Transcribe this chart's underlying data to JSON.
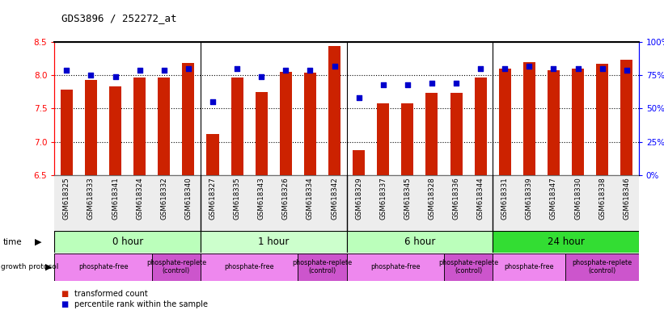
{
  "title": "GDS3896 / 252272_at",
  "samples": [
    "GSM618325",
    "GSM618333",
    "GSM618341",
    "GSM618324",
    "GSM618332",
    "GSM618340",
    "GSM618327",
    "GSM618335",
    "GSM618343",
    "GSM618326",
    "GSM618334",
    "GSM618342",
    "GSM618329",
    "GSM618337",
    "GSM618345",
    "GSM618328",
    "GSM618336",
    "GSM618344",
    "GSM618331",
    "GSM618339",
    "GSM618347",
    "GSM618330",
    "GSM618338",
    "GSM618346"
  ],
  "bar_values": [
    7.78,
    7.93,
    7.83,
    7.97,
    7.97,
    8.18,
    7.12,
    7.97,
    7.75,
    8.05,
    8.04,
    8.44,
    6.87,
    7.58,
    7.58,
    7.74,
    7.74,
    7.96,
    8.1,
    8.2,
    8.08,
    8.1,
    8.17,
    8.23
  ],
  "percentile_values": [
    79,
    75,
    74,
    79,
    79,
    80,
    55,
    80,
    74,
    79,
    79,
    82,
    58,
    68,
    68,
    69,
    69,
    80,
    80,
    82,
    80,
    80,
    80,
    79
  ],
  "ylim_left": [
    6.5,
    8.5
  ],
  "ylim_right": [
    0,
    100
  ],
  "yticks_left": [
    6.5,
    7.0,
    7.5,
    8.0,
    8.5
  ],
  "yticks_right": [
    0,
    25,
    50,
    75,
    100
  ],
  "ytick_labels_right": [
    "0%",
    "25%",
    "50%",
    "75%",
    "100%"
  ],
  "bar_color": "#cc2200",
  "percentile_color": "#0000cc",
  "bg_color": "#ffffff",
  "time_groups": [
    {
      "label": "0 hour",
      "start": 0,
      "end": 6,
      "color": "#bbffbb"
    },
    {
      "label": "1 hour",
      "start": 6,
      "end": 12,
      "color": "#ccffcc"
    },
    {
      "label": "6 hour",
      "start": 12,
      "end": 18,
      "color": "#bbffbb"
    },
    {
      "label": "24 hour",
      "start": 18,
      "end": 24,
      "color": "#33dd33"
    }
  ],
  "protocol_groups": [
    {
      "label": "phosphate-free",
      "start": 0,
      "end": 4,
      "color": "#ee88ee"
    },
    {
      "label": "phosphate-replete\n(control)",
      "start": 4,
      "end": 6,
      "color": "#cc55cc"
    },
    {
      "label": "phosphate-free",
      "start": 6,
      "end": 10,
      "color": "#ee88ee"
    },
    {
      "label": "phosphate-replete\n(control)",
      "start": 10,
      "end": 12,
      "color": "#cc55cc"
    },
    {
      "label": "phosphate-free",
      "start": 12,
      "end": 16,
      "color": "#ee88ee"
    },
    {
      "label": "phosphate-replete\n(control)",
      "start": 16,
      "end": 18,
      "color": "#cc55cc"
    },
    {
      "label": "phosphate-free",
      "start": 18,
      "end": 21,
      "color": "#ee88ee"
    },
    {
      "label": "phosphate-replete\n(control)",
      "start": 21,
      "end": 24,
      "color": "#cc55cc"
    }
  ],
  "legend_bar_label": "transformed count",
  "legend_pct_label": "percentile rank within the sample",
  "group_dividers": [
    6,
    12,
    18
  ]
}
